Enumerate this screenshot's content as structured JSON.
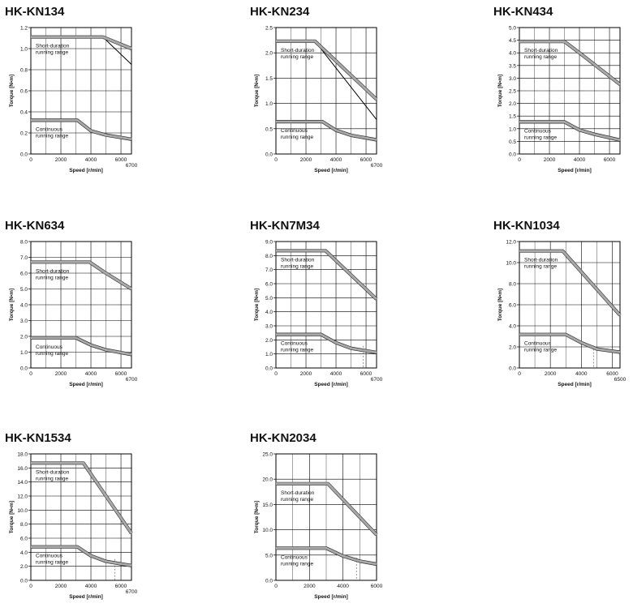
{
  "chart_data": [
    {
      "type": "line",
      "title": "HK-KN134",
      "xlabel": "Speed [r/min]",
      "ylabel": "Torque [N•m]",
      "xlim": [
        0,
        6700
      ],
      "ylim": [
        0,
        1.2
      ],
      "xticks": [
        "0",
        "2000",
        "4000",
        "6000"
      ],
      "xmax_label": "6700",
      "yticks": [
        "0.0",
        "0.2",
        "0.4",
        "0.6",
        "0.8",
        "1.0",
        "1.2"
      ],
      "grid": true,
      "short_label": [
        "Short-duration",
        "running range"
      ],
      "cont_label": [
        "Continuous",
        "running range"
      ],
      "short_duration": {
        "x": [
          0,
          4800,
          6700
        ],
        "y": [
          1.11,
          1.11,
          1.0
        ]
      },
      "short_duration_thin": {
        "x": [
          4800,
          6700
        ],
        "y": [
          1.11,
          0.85
        ]
      },
      "continuous": {
        "x": [
          0,
          3100,
          4000,
          5000,
          6700
        ],
        "y": [
          0.32,
          0.32,
          0.22,
          0.18,
          0.14
        ]
      }
    },
    {
      "type": "line",
      "title": "HK-KN234",
      "xlabel": "Speed [r/min]",
      "ylabel": "Torque [N•m]",
      "xlim": [
        0,
        6700
      ],
      "ylim": [
        0,
        2.5
      ],
      "xticks": [
        "0",
        "2000",
        "4000",
        "6000"
      ],
      "xmax_label": "6700",
      "yticks": [
        "0.0",
        "0.5",
        "1.0",
        "1.5",
        "2.0",
        "2.5"
      ],
      "grid": true,
      "short_label": [
        "Short-duration",
        "running range"
      ],
      "cont_label": [
        "Continuous",
        "running range"
      ],
      "short_duration": {
        "x": [
          0,
          2600,
          6700
        ],
        "y": [
          2.23,
          2.23,
          1.08
        ]
      },
      "short_duration_thin": {
        "x": [
          2600,
          6700
        ],
        "y": [
          2.23,
          0.68
        ]
      },
      "continuous": {
        "x": [
          0,
          3100,
          4000,
          5000,
          6700
        ],
        "y": [
          0.64,
          0.64,
          0.47,
          0.37,
          0.28
        ]
      }
    },
    {
      "type": "line",
      "title": "HK-KN434",
      "xlabel": "Speed [r/min]",
      "ylabel": "Torque [N•m]",
      "xlim": [
        0,
        6700
      ],
      "ylim": [
        0,
        5.0
      ],
      "xticks": [
        "0",
        "2000",
        "4000",
        "6000"
      ],
      "xmax_label": "",
      "yticks": [
        "0.0",
        "0.5",
        "1.0",
        "1.5",
        "2.0",
        "2.5",
        "3.0",
        "3.5",
        "4.0",
        "4.5",
        "5.0"
      ],
      "grid": true,
      "short_label": [
        "Short-duration",
        "running range"
      ],
      "cont_label": [
        "Continuous",
        "running range"
      ],
      "short_duration": {
        "x": [
          0,
          3000,
          4000,
          6700
        ],
        "y": [
          4.45,
          4.45,
          4.0,
          2.75
        ]
      },
      "continuous": {
        "x": [
          0,
          3000,
          4000,
          5000,
          6700
        ],
        "y": [
          1.27,
          1.27,
          0.95,
          0.78,
          0.55
        ]
      }
    },
    {
      "type": "line",
      "title": "HK-KN634",
      "xlabel": "Speed [r/min]",
      "ylabel": "Torque [N•m]",
      "xlim": [
        0,
        6700
      ],
      "ylim": [
        0,
        8.0
      ],
      "xticks": [
        "0",
        "2000",
        "4000",
        "6000"
      ],
      "xmax_label": "6700",
      "yticks": [
        "0.0",
        "1.0",
        "2.0",
        "3.0",
        "4.0",
        "5.0",
        "6.0",
        "7.0",
        "8.0"
      ],
      "grid": true,
      "short_label": [
        "Short-duration",
        "running range"
      ],
      "cont_label": [
        "Continuous",
        "running range"
      ],
      "short_duration": {
        "x": [
          0,
          3900,
          5000,
          6700
        ],
        "y": [
          6.7,
          6.7,
          6.0,
          5.0
        ]
      },
      "continuous": {
        "x": [
          0,
          3000,
          4000,
          5000,
          6700
        ],
        "y": [
          1.91,
          1.91,
          1.45,
          1.15,
          0.85
        ]
      }
    },
    {
      "type": "line",
      "title": "HK-KN7M34",
      "xlabel": "Speed [r/min]",
      "ylabel": "Torque [N•m]",
      "xlim": [
        0,
        6700
      ],
      "ylim": [
        0,
        9.0
      ],
      "xticks": [
        "0",
        "2000",
        "4000",
        "6000"
      ],
      "xmax_label": "6700",
      "yticks": [
        "0.0",
        "1.0",
        "2.0",
        "3.0",
        "4.0",
        "5.0",
        "6.0",
        "7.0",
        "8.0",
        "9.0"
      ],
      "grid": true,
      "short_label": [
        "Short-duration",
        "running range"
      ],
      "cont_label": [
        "Continuous",
        "running range"
      ],
      "short_duration": {
        "x": [
          0,
          3300,
          6700
        ],
        "y": [
          8.35,
          8.35,
          4.9
        ]
      },
      "continuous": {
        "x": [
          0,
          3000,
          4000,
          5000,
          6700
        ],
        "y": [
          2.39,
          2.39,
          1.8,
          1.4,
          1.1
        ]
      },
      "dashed_x": 5800
    },
    {
      "type": "line",
      "title": "HK-KN1034",
      "xlabel": "Speed [r/min]",
      "ylabel": "Torque [N•m]",
      "xlim": [
        0,
        6500
      ],
      "ylim": [
        0,
        12.0
      ],
      "xticks": [
        "0",
        "2000",
        "4000",
        "6000"
      ],
      "xmax_label": "6500",
      "yticks": [
        "0.0",
        "2.0",
        "4.0",
        "6.0",
        "8.0",
        "10.0",
        "12.0"
      ],
      "grid": true,
      "short_label": [
        "Short-duration",
        "running range"
      ],
      "cont_label": [
        "Continuous",
        "running range"
      ],
      "short_duration": {
        "x": [
          0,
          2800,
          6500
        ],
        "y": [
          11.1,
          11.1,
          5.0
        ]
      },
      "continuous": {
        "x": [
          0,
          3000,
          4000,
          5000,
          6500
        ],
        "y": [
          3.18,
          3.18,
          2.4,
          1.8,
          1.5
        ]
      },
      "dashed_x": 4800
    },
    {
      "type": "line",
      "title": "HK-KN1534",
      "xlabel": "Speed [r/min]",
      "ylabel": "Torque [N•m]",
      "xlim": [
        0,
        6700
      ],
      "ylim": [
        0,
        18.0
      ],
      "xticks": [
        "0",
        "2000",
        "4000",
        "6000"
      ],
      "xmax_label": "6700",
      "yticks": [
        "0.0",
        "2.0",
        "4.0",
        "6.0",
        "8.0",
        "10.0",
        "12.0",
        "14.0",
        "16.0",
        "18.0"
      ],
      "grid": true,
      "short_label": [
        "Short-duration",
        "running range"
      ],
      "cont_label": [
        "Continuous",
        "running range"
      ],
      "short_duration": {
        "x": [
          0,
          3500,
          6700
        ],
        "y": [
          16.7,
          16.7,
          6.7
        ]
      },
      "continuous": {
        "x": [
          0,
          3100,
          4000,
          5000,
          6700
        ],
        "y": [
          4.77,
          4.77,
          3.5,
          2.7,
          2.1
        ]
      },
      "dashed_x": 5600
    },
    {
      "type": "line",
      "title": "HK-KN2034",
      "xlabel": "Speed [r/min]",
      "ylabel": "Torque [N•m]",
      "xlim": [
        0,
        6000
      ],
      "ylim": [
        0,
        25.0
      ],
      "xticks": [
        "0",
        "2000",
        "4000",
        "6000"
      ],
      "xmax_label": "",
      "yticks": [
        "0.0",
        "5.0",
        "10.0",
        "15.0",
        "20.0",
        "25.0"
      ],
      "grid": true,
      "short_label": [
        "Short-duration",
        "running range"
      ],
      "cont_label": [
        "Continuous",
        "running range"
      ],
      "short_duration": {
        "x": [
          0,
          3100,
          6000
        ],
        "y": [
          19.1,
          19.1,
          9.0
        ]
      },
      "continuous": {
        "x": [
          0,
          3000,
          4000,
          5000,
          6000
        ],
        "y": [
          6.37,
          6.37,
          4.8,
          3.8,
          3.2
        ]
      },
      "dashed_x": 4800
    }
  ]
}
